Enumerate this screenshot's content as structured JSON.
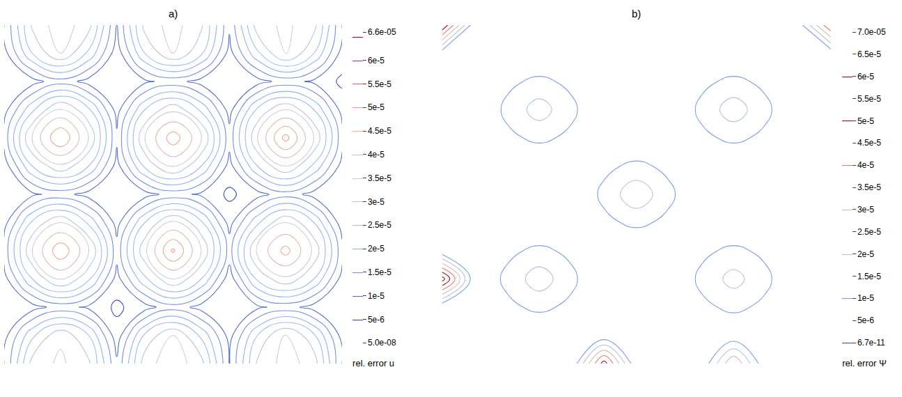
{
  "chart_data": [
    {
      "type": "contour",
      "title": "a)",
      "tick_labels": false,
      "cells": [
        [
          1e-05,
          3.2e-05,
          3.6e-05,
          3.1e-05,
          1.1e-05,
          3.3e-05,
          3.8e-05,
          3.2e-05,
          1e-05,
          3.1e-05,
          3.7e-05,
          3.3e-05,
          1e-05
        ],
        [
          8e-06,
          2.4e-05,
          3.4e-05,
          2.5e-05,
          7e-06,
          2.6e-05,
          3.5e-05,
          2.4e-05,
          8e-06,
          2.5e-05,
          3.6e-05,
          2.6e-05,
          8e-06
        ],
        [
          5e-06,
          8e-06,
          1.2e-05,
          9e-06,
          4e-06,
          8e-06,
          1.3e-05,
          8e-06,
          5e-06,
          9e-06,
          1.2e-05,
          8e-06,
          5e-06
        ],
        [
          8e-06,
          2.5e-05,
          3.6e-05,
          2.6e-05,
          8e-06,
          2.4e-05,
          3.5e-05,
          2.5e-05,
          7e-06,
          2.6e-05,
          3.4e-05,
          2.5e-05,
          8e-06
        ],
        [
          1.2e-05,
          3.5e-05,
          4.9e-05,
          3.6e-05,
          1.2e-05,
          3.4e-05,
          5.1e-05,
          3.5e-05,
          1.3e-05,
          3.6e-05,
          4.7e-05,
          3.4e-05,
          1.2e-05
        ],
        [
          8e-06,
          2.6e-05,
          3.5e-05,
          2.4e-05,
          8e-06,
          2.5e-05,
          3.6e-05,
          2.6e-05,
          8e-06,
          2.4e-05,
          3.5e-05,
          2.5e-05,
          7e-06
        ],
        [
          5e-06,
          9e-06,
          1.2e-05,
          8e-06,
          5e-06,
          8e-06,
          1.2e-05,
          9e-06,
          4e-06,
          8e-06,
          1.3e-05,
          8e-06,
          5e-06
        ],
        [
          7e-06,
          2.5e-05,
          3.4e-05,
          2.5e-05,
          8e-06,
          2.6e-05,
          3.6e-05,
          2.5e-05,
          8e-06,
          2.5e-05,
          3.5e-05,
          2.4e-05,
          8e-06
        ],
        [
          1.2e-05,
          3.6e-05,
          5e-05,
          3.5e-05,
          1.1e-05,
          3.5e-05,
          4.8e-05,
          3.6e-05,
          1.2e-05,
          3.5e-05,
          5.2e-05,
          3.5e-05,
          1.2e-05
        ],
        [
          8e-06,
          2.4e-05,
          3.6e-05,
          2.6e-05,
          8e-06,
          2.5e-05,
          3.4e-05,
          2.4e-05,
          8e-06,
          2.6e-05,
          3.5e-05,
          2.5e-05,
          8e-06
        ],
        [
          5e-06,
          8e-06,
          1.3e-05,
          8e-06,
          5e-06,
          9e-06,
          1.2e-05,
          8e-06,
          5e-06,
          8e-06,
          1.2e-05,
          9e-06,
          4e-06
        ],
        [
          8e-06,
          2.5e-05,
          3.5e-05,
          2.4e-05,
          7e-06,
          2.5e-05,
          3.5e-05,
          2.6e-05,
          8e-06,
          2.4e-05,
          3.6e-05,
          2.5e-05,
          8e-06
        ],
        [
          1e-05,
          3.1e-05,
          3.8e-05,
          3.2e-05,
          1e-05,
          3.2e-05,
          3.7e-05,
          3.1e-05,
          1.1e-05,
          3.3e-05,
          3.6e-05,
          3.2e-05,
          1e-05
        ]
      ],
      "colorbar": {
        "title": "rel. error u",
        "range": [
          5e-08,
          6.6e-05
        ],
        "ticks": [
          {
            "value": 5e-08,
            "label": "5.0e-08"
          },
          {
            "value": 5e-06,
            "label": "5e-6"
          },
          {
            "value": 1e-05,
            "label": "1e-5"
          },
          {
            "value": 1.5e-05,
            "label": "1.5e-5"
          },
          {
            "value": 2e-05,
            "label": "2e-5"
          },
          {
            "value": 2.5e-05,
            "label": "2.5e-5"
          },
          {
            "value": 3e-05,
            "label": "3e-5"
          },
          {
            "value": 3.5e-05,
            "label": "3.5e-5"
          },
          {
            "value": 4e-05,
            "label": "4e-5"
          },
          {
            "value": 4.5e-05,
            "label": "4.5e-5"
          },
          {
            "value": 5e-05,
            "label": "5e-5"
          },
          {
            "value": 5.5e-05,
            "label": "5.5e-5"
          },
          {
            "value": 6e-05,
            "label": "6e-5"
          },
          {
            "value": 6.6e-05,
            "label": "6.6e-05"
          }
        ]
      }
    },
    {
      "type": "contour",
      "title": "b)",
      "tick_labels": false,
      "cells": [
        [
          2e-06,
          1e-06,
          1e-06,
          2e-06,
          1e-06,
          5.5e-05,
          1e-06,
          2e-06,
          1e-06,
          4e-05,
          1e-06,
          1e-06,
          3e-06
        ],
        [
          1e-06,
          1e-06,
          1e-06,
          1e-06,
          1e-06,
          2e-06,
          1e-06,
          1e-06,
          1e-06,
          2e-06,
          1e-06,
          1e-06,
          1e-06
        ],
        [
          1e-06,
          1e-06,
          8e-06,
          1.2e-05,
          8e-06,
          1e-06,
          1e-06,
          1e-06,
          8e-06,
          1.2e-05,
          8e-06,
          1e-06,
          1e-06
        ],
        [
          6.5e-05,
          2e-06,
          1.2e-05,
          2.6e-05,
          1.2e-05,
          1e-06,
          1e-06,
          1e-06,
          1.2e-05,
          2.4e-05,
          1.2e-05,
          1e-06,
          1e-06
        ],
        [
          2e-06,
          1e-06,
          8e-06,
          1.2e-05,
          8e-06,
          1e-06,
          1e-06,
          1e-06,
          8e-06,
          1.2e-05,
          8e-06,
          1e-06,
          1e-06
        ],
        [
          1e-06,
          1e-06,
          1e-06,
          1e-06,
          1e-06,
          8e-06,
          1.2e-05,
          8e-06,
          1e-06,
          1e-06,
          1e-06,
          1e-06,
          1e-06
        ],
        [
          1e-06,
          1e-06,
          1e-06,
          1e-06,
          2e-06,
          1.2e-05,
          2.8e-05,
          1.2e-05,
          2e-06,
          1e-06,
          1e-06,
          1e-06,
          2e-06
        ],
        [
          1e-06,
          1e-06,
          1e-06,
          1e-06,
          1e-06,
          8e-06,
          1.2e-05,
          8e-06,
          1e-06,
          1e-06,
          1e-06,
          1e-06,
          1e-06
        ],
        [
          1e-06,
          1e-06,
          8e-06,
          1.2e-05,
          8e-06,
          1e-06,
          1e-06,
          1e-06,
          8e-06,
          1.2e-05,
          8e-06,
          1e-06,
          1e-06
        ],
        [
          1e-06,
          1e-06,
          1.2e-05,
          2.5e-05,
          1.2e-05,
          1e-06,
          1e-06,
          1e-06,
          1.2e-05,
          2.6e-05,
          1.2e-05,
          1e-06,
          3e-06
        ],
        [
          1e-06,
          1e-06,
          8e-06,
          1.2e-05,
          8e-06,
          1e-06,
          1e-06,
          1e-06,
          8e-06,
          1.2e-05,
          8e-06,
          1e-06,
          1e-06
        ],
        [
          4e-06,
          1e-06,
          1e-06,
          1e-06,
          1e-06,
          1e-06,
          1e-06,
          1e-06,
          1e-06,
          1e-06,
          1e-06,
          1e-06,
          3e-06
        ],
        [
          6e-05,
          3e-06,
          1e-06,
          1e-06,
          2e-06,
          1e-06,
          1e-06,
          1e-06,
          2e-06,
          1e-06,
          1e-06,
          4e-06,
          5e-05
        ]
      ],
      "colorbar": {
        "title": "rel. error Ψ",
        "range": [
          6.7e-11,
          7e-05
        ],
        "ticks": [
          {
            "value": 6.7e-11,
            "label": "6.7e-11"
          },
          {
            "value": 5e-06,
            "label": "5e-6"
          },
          {
            "value": 1e-05,
            "label": "1e-5"
          },
          {
            "value": 1.5e-05,
            "label": "1.5e-5"
          },
          {
            "value": 2e-05,
            "label": "2e-5"
          },
          {
            "value": 2.5e-05,
            "label": "2.5e-5"
          },
          {
            "value": 3e-05,
            "label": "3e-5"
          },
          {
            "value": 3.5e-05,
            "label": "3.5e-5"
          },
          {
            "value": 4e-05,
            "label": "4e-5"
          },
          {
            "value": 4.5e-05,
            "label": "4.5e-5"
          },
          {
            "value": 5e-05,
            "label": "5e-5"
          },
          {
            "value": 5.5e-05,
            "label": "5.5e-5"
          },
          {
            "value": 6e-05,
            "label": "6e-5"
          },
          {
            "value": 6.5e-05,
            "label": "6.5e-5"
          },
          {
            "value": 7e-05,
            "label": "7.0e-05"
          }
        ]
      }
    }
  ]
}
